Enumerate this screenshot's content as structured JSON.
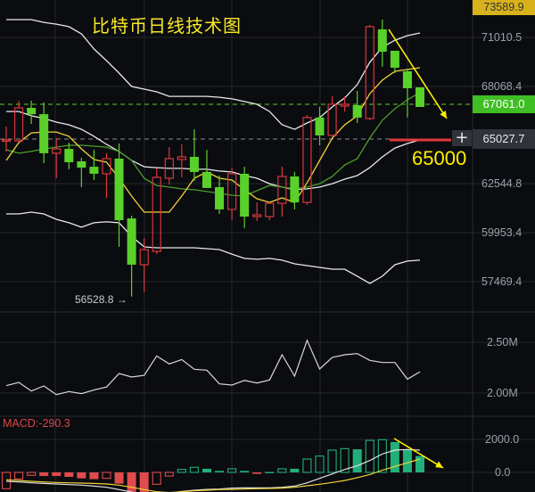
{
  "title": "比特币日线技术图",
  "colors": {
    "background": "#0b0c0f",
    "up": "#d8383e",
    "down": "#5ad12a",
    "ma5": "#f1d23a",
    "ma10": "#4a9e2a",
    "boll": "#e8e8e8",
    "grid": "#23262d",
    "annotation": "#ffee00",
    "macd_up": "#22b07a",
    "macd_down": "#e14b4b"
  },
  "price_axis": {
    "ticks": [
      "71010.5",
      "68068.4",
      "62544.8",
      "59953.4",
      "57469.4"
    ],
    "top_label": "73589.9",
    "current_price": "67061.0",
    "crosshair_price": "65027.7"
  },
  "annotations": {
    "support_label": "65000",
    "low_label": "56528.8 →"
  },
  "volume_axis": {
    "ticks": [
      "2.50M",
      "2.00M"
    ]
  },
  "macd": {
    "label": "MACD:-290.3",
    "ticks": [
      "2000.0",
      "0.0"
    ]
  },
  "chart_data": [
    {
      "type": "candlestick",
      "title": "比特币日线技术图",
      "ylim": [
        56200,
        73600
      ],
      "ohlc_order": [
        "open",
        "high",
        "low",
        "close"
      ],
      "candles": [
        [
          65180,
          65970,
          64590,
          65230
        ],
        [
          65180,
          67410,
          65080,
          67010
        ],
        [
          67010,
          67410,
          66120,
          66660
        ],
        [
          66660,
          67310,
          63940,
          64490
        ],
        [
          64490,
          65330,
          63100,
          64730
        ],
        [
          64730,
          65080,
          63600,
          63990
        ],
        [
          64040,
          64240,
          62610,
          63690
        ],
        [
          63740,
          64680,
          63000,
          63350
        ],
        [
          63350,
          64490,
          62010,
          64190
        ],
        [
          64190,
          65030,
          59290,
          60770
        ],
        [
          60870,
          61020,
          56528.8,
          58300
        ],
        [
          58300,
          59780,
          56760,
          59140
        ],
        [
          59040,
          63650,
          58890,
          63150
        ],
        [
          63100,
          64830,
          62750,
          64190
        ],
        [
          64140,
          64980,
          63150,
          64290
        ],
        [
          64290,
          65820,
          62950,
          63450
        ],
        [
          63450,
          64680,
          62560,
          62560
        ],
        [
          62610,
          63250,
          61120,
          61370
        ],
        [
          61370,
          63690,
          60770,
          63350
        ],
        [
          63350,
          63740,
          60330,
          60970
        ],
        [
          60970,
          61760,
          60720,
          61070
        ],
        [
          60970,
          61760,
          60770,
          61710
        ],
        [
          61710,
          63740,
          60970,
          63200
        ],
        [
          63200,
          63450,
          61370,
          61760
        ],
        [
          61760,
          66610,
          61620,
          66470
        ],
        [
          66470,
          67060,
          64930,
          65480
        ],
        [
          65480,
          67650,
          65430,
          67210
        ],
        [
          67110,
          67650,
          66810,
          67210
        ],
        [
          67160,
          67950,
          66170,
          66470
        ],
        [
          66420,
          71610,
          66320,
          71520
        ],
        [
          71370,
          71910,
          69290,
          70130
        ],
        [
          70180,
          70180,
          68940,
          69240
        ],
        [
          69040,
          69190,
          66470,
          68100
        ],
        [
          68150,
          68150,
          67110,
          67061
        ]
      ],
      "lines": {
        "boll_upper": [
          71910,
          71910,
          71910,
          71760,
          71660,
          71520,
          71120,
          70280,
          69630,
          68940,
          68200,
          68050,
          67900,
          67650,
          67650,
          67650,
          67650,
          67600,
          67510,
          67360,
          67210,
          66810,
          66070,
          65820,
          66170,
          66470,
          67060,
          67560,
          68300,
          69540,
          70380,
          70770,
          71020,
          71170
        ],
        "boll_mid": [
          66810,
          66810,
          66570,
          66420,
          66220,
          66070,
          65820,
          65430,
          64980,
          64590,
          64090,
          63740,
          63690,
          63650,
          63650,
          63600,
          63600,
          63500,
          63450,
          63250,
          63100,
          62800,
          62610,
          62460,
          62510,
          62610,
          62800,
          63050,
          63250,
          63690,
          64290,
          64780,
          65030,
          65230
        ],
        "boll_lower": [
          61120,
          61120,
          61220,
          61120,
          60820,
          60630,
          60380,
          60630,
          60680,
          60630,
          59880,
          59290,
          59240,
          59240,
          59240,
          59240,
          59190,
          59140,
          58890,
          58650,
          58600,
          58650,
          58550,
          58350,
          58250,
          58150,
          58050,
          58050,
          57660,
          57260,
          57660,
          58300,
          58500,
          58550
        ],
        "ma5": [
          64090,
          65080,
          65620,
          65670,
          65670,
          65430,
          64730,
          64140,
          63990,
          63100,
          62110,
          61220,
          61220,
          61220,
          62110,
          63100,
          63450,
          63100,
          63000,
          62460,
          61960,
          61760,
          62010,
          61760,
          62850,
          64090,
          65330,
          66070,
          66570,
          67800,
          68550,
          69040,
          69140,
          69240
        ],
        "ma10": [
          64680,
          64490,
          64590,
          64730,
          64830,
          64930,
          64930,
          64880,
          64830,
          64590,
          64090,
          63100,
          62700,
          62610,
          62510,
          62460,
          62360,
          62260,
          62160,
          62110,
          62410,
          62700,
          62610,
          62510,
          62610,
          62800,
          63200,
          63840,
          64190,
          65330,
          66320,
          66960,
          67460,
          67850
        ]
      },
      "horizontal_lines": {
        "current_price": 67061.0,
        "support": 65000,
        "crosshair": 65027.7
      },
      "grid": true
    },
    {
      "type": "line",
      "unit": "M",
      "ylim": [
        1.8,
        2.6
      ],
      "values": [
        2.073,
        2.105,
        2.02,
        2.07,
        1.985,
        2.015,
        1.995,
        2.03,
        2.06,
        2.193,
        2.158,
        2.175,
        2.365,
        2.287,
        2.33,
        2.234,
        2.225,
        2.09,
        2.079,
        2.125,
        2.099,
        2.129,
        2.377,
        2.167,
        2.518,
        2.237,
        2.351,
        2.377,
        2.389,
        2.322,
        2.301,
        2.301,
        2.137,
        2.21
      ]
    },
    {
      "type": "bar",
      "title": "MACD:-290.3",
      "ylim": [
        -1200,
        2500
      ],
      "histogram": [
        -990,
        -400,
        -180,
        -220,
        -220,
        -270,
        -360,
        -410,
        -360,
        -680,
        -1190,
        -1190,
        -720,
        -220,
        180,
        310,
        220,
        90,
        220,
        90,
        -90,
        30,
        220,
        220,
        810,
        990,
        1350,
        1440,
        1400,
        1940,
        1980,
        1840,
        1400,
        990
      ],
      "hollow": [
        1,
        1,
        1,
        0,
        0,
        0,
        0,
        0,
        1,
        0,
        0,
        0,
        1,
        1,
        1,
        1,
        0,
        0,
        1,
        0,
        0,
        0,
        1,
        0,
        1,
        1,
        1,
        1,
        0,
        1,
        1,
        0,
        0,
        0
      ],
      "dif": [
        -540,
        -580,
        -630,
        -670,
        -700,
        -740,
        -770,
        -830,
        -900,
        -1040,
        -1190,
        -1440,
        -1440,
        -1260,
        -1150,
        -1080,
        -1030,
        -1010,
        -950,
        -940,
        -940,
        -940,
        -900,
        -830,
        -630,
        -360,
        -90,
        180,
        400,
        720,
        1120,
        1350,
        1390,
        1350
      ],
      "dea": [
        -450,
        -490,
        -540,
        -580,
        -610,
        -630,
        -650,
        -670,
        -700,
        -770,
        -900,
        -1040,
        -1170,
        -1220,
        -1170,
        -1120,
        -1080,
        -1040,
        -1030,
        -1010,
        -990,
        -970,
        -950,
        -900,
        -810,
        -720,
        -610,
        -490,
        -320,
        -130,
        130,
        360,
        580,
        810
      ]
    }
  ]
}
